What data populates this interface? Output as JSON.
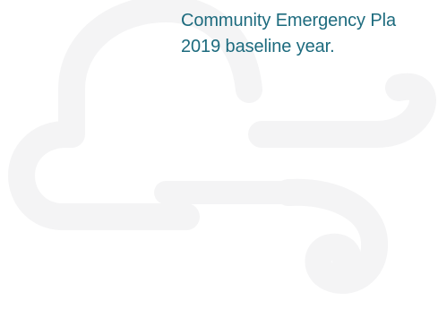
{
  "body_text": {
    "line1": "Community Emergency Pla",
    "line2": "2019 baseline year."
  },
  "background": {
    "icon": "cloud-wind-icon",
    "color": "#f4f4f5"
  },
  "colors": {
    "text": "#1d6b7e",
    "page": "#ffffff"
  }
}
